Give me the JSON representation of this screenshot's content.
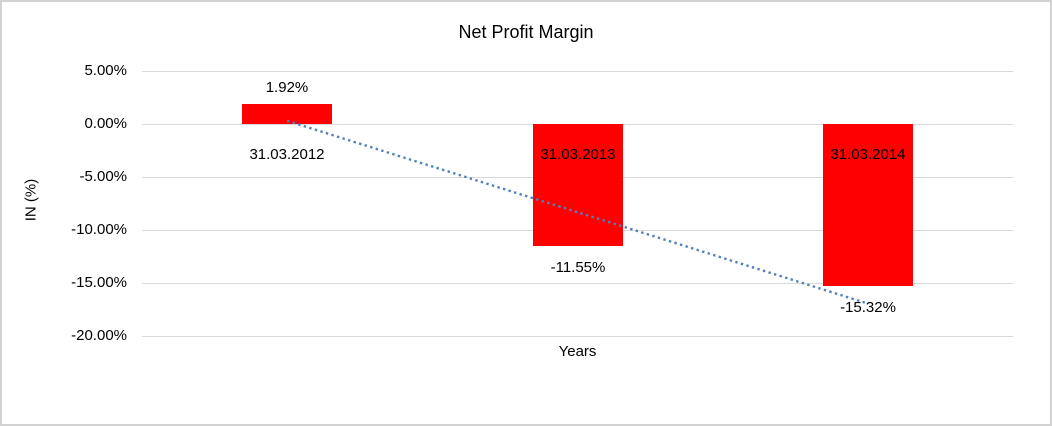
{
  "window": {
    "background_color": "#ffffff",
    "border_color": "#d2d2d2"
  },
  "chart_data": {
    "type": "bar",
    "title": "Net Profit Margin",
    "xlabel": "Years",
    "ylabel": "IN (%)",
    "categories": [
      "31.03.2012",
      "31.03.2013",
      "31.03.2014"
    ],
    "series": [
      {
        "name": "Net Profit Margin",
        "values": [
          1.92,
          -11.55,
          -15.32
        ]
      }
    ],
    "data_labels": [
      "1.92%",
      "-11.55%",
      "-15.32%"
    ],
    "y_ticks": [
      {
        "value": 5,
        "label": "5.00%"
      },
      {
        "value": 0,
        "label": "0.00%"
      },
      {
        "value": -5,
        "label": "-5.00%"
      },
      {
        "value": -10,
        "label": "-10.00%"
      },
      {
        "value": -15,
        "label": "-15.00%"
      },
      {
        "value": -20,
        "label": "-20.00%"
      }
    ],
    "ylim": [
      -20,
      5
    ],
    "grid": "horizontal",
    "legend": "none",
    "bar_color": "#ff0000",
    "gridline_color": "#d9d9d9",
    "trendline": {
      "style": "dotted",
      "color": "#4f81bd",
      "start_value": 0.3,
      "end_value": -16.94
    }
  }
}
